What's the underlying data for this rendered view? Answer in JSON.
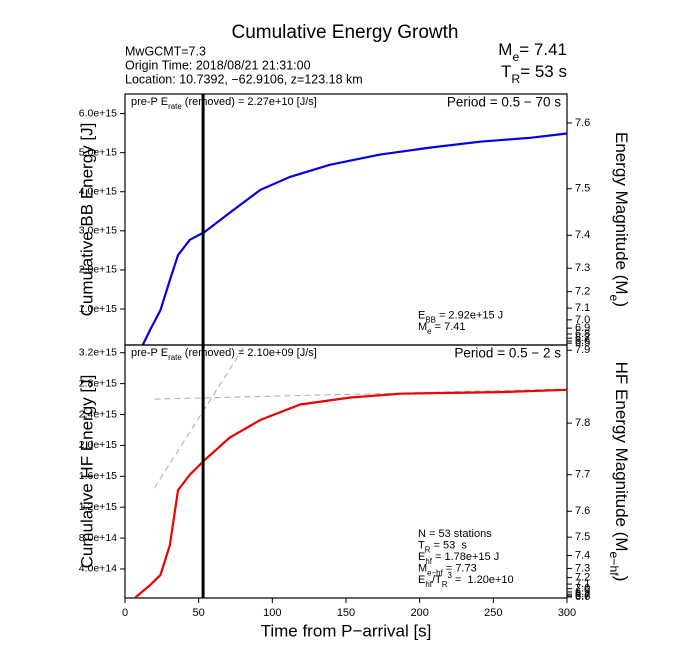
{
  "header": {
    "title": "Cumulative Energy Growth",
    "info": [
      "MwGCMT=7.3",
      "Origin Time: 2018/08/21 21:31:00",
      "Location: 10.7392, −62.9106, z=123.18 km"
    ],
    "summary": [
      [
        "M",
        {
          "sub": "e"
        },
        "= 7.41"
      ],
      [
        "T",
        {
          "sub": "R"
        },
        "= 53 s"
      ]
    ]
  },
  "chart_data": [
    {
      "type": "line",
      "ylabel": "Cumulative BB Energy [J]",
      "y2label": [
        "Energy Magnitude (M",
        {
          "sub": "e"
        },
        ")"
      ],
      "xlim": [
        0,
        300
      ],
      "ylim": [
        80000000000000.0,
        6500000000000000.0
      ],
      "yticks": [
        {
          "value": 1000000000000000.0,
          "label": "1.0e+15"
        },
        {
          "value": 2000000000000000.0,
          "label": "2.0e+15"
        },
        {
          "value": 3000000000000000.0,
          "label": "3.0e+15"
        },
        {
          "value": 4000000000000000.0,
          "label": "4.0e+15"
        },
        {
          "value": 5000000000000000.0,
          "label": "5.0e+15"
        },
        {
          "value": 6000000000000000.0,
          "label": "6.0e+15"
        }
      ],
      "y2lim": [
        6.369,
        7.635
      ],
      "y2scale": "magnitude",
      "y2ticks": [
        7.6,
        7.5,
        7.4,
        7.3,
        7.2,
        7.1,
        {
          "value": 7,
          "label": "7.0"
        },
        6.9,
        6.8,
        6.7,
        6.6,
        6.5
      ],
      "vline": 53,
      "series": [
        {
          "color": "#0000e0",
          "x": [
            12,
            17,
            24,
            30.5,
            36,
            44,
            54,
            71,
            92,
            112,
            139,
            173,
            207,
            241,
            275,
            300
          ],
          "values": [
            80000000000000.0,
            460000000000000.0,
            970000000000000.0,
            1740000000000000.0,
            2380000000000000.0,
            2770000000000000.0,
            2970000000000000.0,
            3460000000000000.0,
            4050000000000000.0,
            4380000000000000.0,
            4690000000000000.0,
            4950000000000000.0,
            5130000000000000.0,
            5280000000000000.0,
            5380000000000000.0,
            5490000000000000.0
          ]
        }
      ],
      "annotations": {
        "top_left": [
          "pre-P E",
          {
            "sub": "rate"
          },
          " (removed) = 2.27e+10 [J/s]"
        ],
        "top_right": "Period = 0.5 − 70 s",
        "bottom_right": [
          [
            "E",
            {
              "sub": "BB"
            },
            " = 2.92e+15 J"
          ],
          [
            "M",
            {
              "sub": "e"
            },
            " = 7.41"
          ]
        ]
      }
    },
    {
      "type": "line",
      "ylabel": "Cumulative HF Energy [J]",
      "y2label": [
        "HF Energy Magnitude (M",
        {
          "sub": "e−hf"
        },
        ")"
      ],
      "xlabel": "Time from P−arrival [s]",
      "xlim": [
        0,
        300
      ],
      "xticks": [
        0,
        50,
        100,
        150,
        200,
        250,
        300
      ],
      "ylim": [
        24000000000000.0,
        3300000000000000.0
      ],
      "yticks": [
        {
          "value": 400000000000000.0,
          "label": "4.0e+14"
        },
        {
          "value": 800000000000000.0,
          "label": "8.0e+14"
        },
        {
          "value": 1200000000000000.0,
          "label": "1.2e+15"
        },
        {
          "value": 1600000000000000.0,
          "label": "1.6e+15"
        },
        {
          "value": 2000000000000000.0,
          "label": "2.0e+15"
        },
        {
          "value": 2400000000000000.0,
          "label": "2.4e+15"
        },
        {
          "value": 2800000000000000.0,
          "label": "2.8e+15"
        },
        {
          "value": 3200000000000000.0,
          "label": "3.2e+15"
        }
      ],
      "y2lim": [
        6.48,
        7.906
      ],
      "y2scale": "magnitude",
      "y2ticks": [
        7.9,
        7.8,
        7.7,
        7.6,
        7.5,
        7.4,
        7.3,
        7.2,
        7.1,
        {
          "value": 7,
          "label": "7.0"
        },
        6.9,
        6.8,
        6.7,
        6.6
      ],
      "vline": 53,
      "series": [
        {
          "color": "#ee0000",
          "x": [
            7,
            17,
            24,
            30.5,
            36,
            44,
            54,
            71,
            92,
            119,
            153,
            187,
            221,
            255,
            300
          ],
          "values": [
            30000000000000.0,
            190000000000000.0,
            320000000000000.0,
            710000000000000.0,
            1420000000000000.0,
            1620000000000000.0,
            1810000000000000.0,
            2100000000000000.0,
            2330000000000000.0,
            2530000000000000.0,
            2620000000000000.0,
            2670000000000000.0,
            2680000000000000.0,
            2690000000000000.0,
            2720000000000000.0
          ]
        }
      ],
      "reference_lines": [
        {
          "color": "#aaaaaa",
          "x": [
            20,
            300
          ],
          "values": [
            2600000000000000.0,
            2730000000000000.0
          ]
        },
        {
          "color": "#aaaaaa",
          "x": [
            20,
            81.5
          ],
          "values": [
            1450000000000000.0,
            3300000000000000.0
          ]
        }
      ],
      "annotations": {
        "top_left": [
          "pre-P E",
          {
            "sub": "rate"
          },
          " (removed) = 2.10e+09 [J/s]"
        ],
        "top_right": "Period = 0.5 − 2 s",
        "bottom_right": [
          [
            "N = 53 stations"
          ],
          [
            "T",
            {
              "sub": "R"
            },
            " = 53  s"
          ],
          [
            "E",
            {
              "sub": "hf"
            },
            " = 1.78e+15 J"
          ],
          [
            "M",
            {
              "sub": "e−hf"
            },
            " = 7.73"
          ],
          [
            "E",
            {
              "sub": "hf"
            },
            "/T",
            {
              "sub": "R"
            },
            {
              "sup": "3"
            },
            " =  1.20e+10"
          ]
        ]
      }
    }
  ]
}
